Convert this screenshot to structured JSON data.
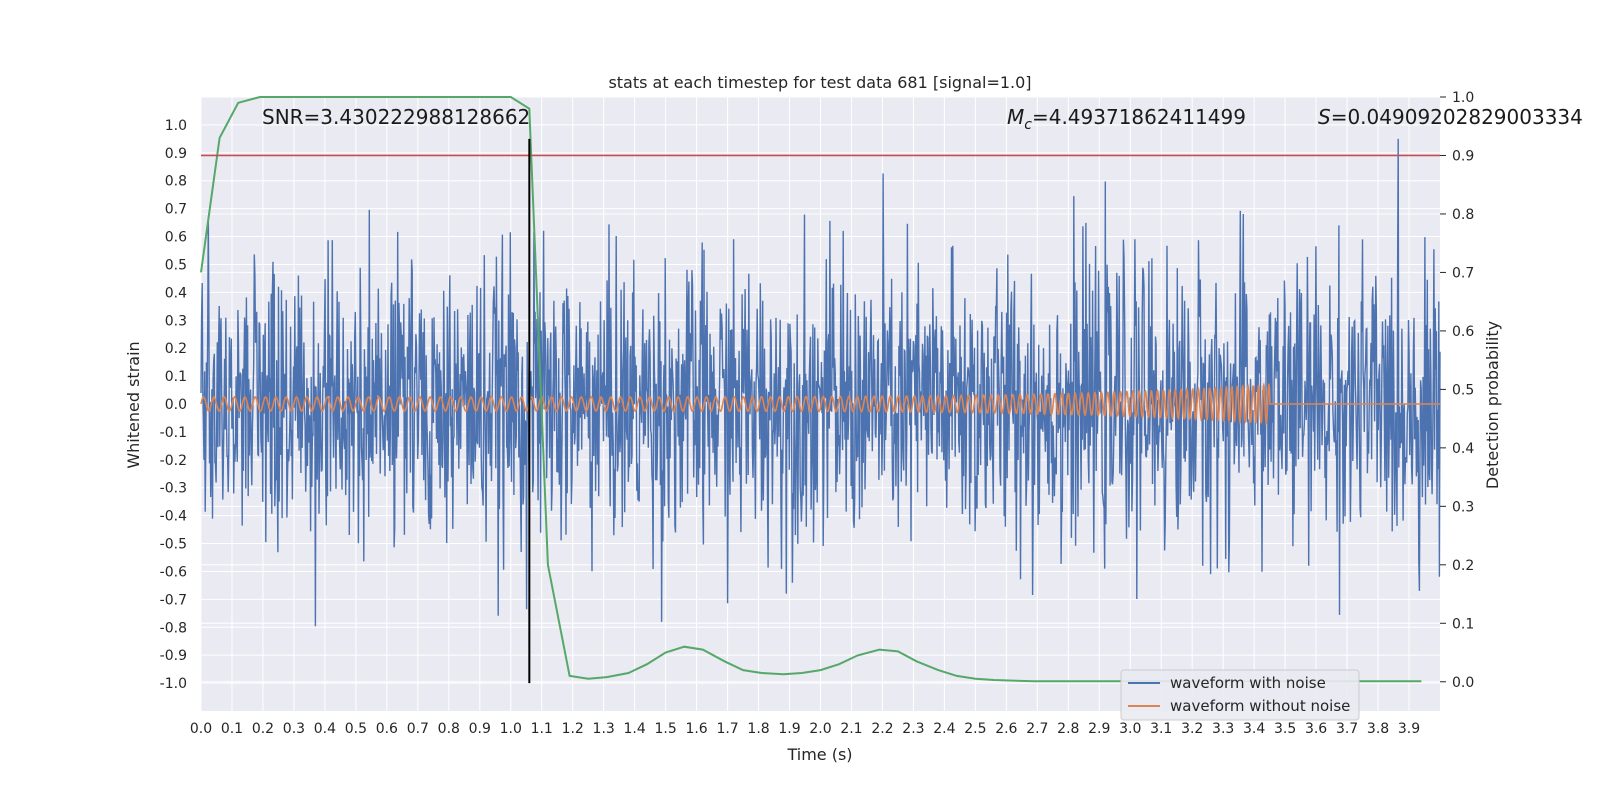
{
  "chart_data": {
    "type": "line",
    "title": "stats at each timestep for test data 681 [signal=1.0]",
    "xlabel": "Time (s)",
    "ylabel": "Whitened strain",
    "y2label": "Detection probability",
    "xlim": [
      0.0,
      4.0
    ],
    "ylim": [
      -1.1,
      1.1
    ],
    "y2lim": [
      -0.05,
      1.0
    ],
    "x_ticks": [
      "0.0",
      "0.1",
      "0.2",
      "0.3",
      "0.4",
      "0.5",
      "0.6",
      "0.7",
      "0.8",
      "0.9",
      "1.0",
      "1.1",
      "1.2",
      "1.3",
      "1.4",
      "1.5",
      "1.6",
      "1.7",
      "1.8",
      "1.9",
      "2.0",
      "2.1",
      "2.2",
      "2.3",
      "2.4",
      "2.5",
      "2.6",
      "2.7",
      "2.8",
      "2.9",
      "3.0",
      "3.1",
      "3.2",
      "3.3",
      "3.4",
      "3.5",
      "3.6",
      "3.7",
      "3.8",
      "3.9"
    ],
    "y_ticks": [
      "1.0",
      "0.9",
      "0.8",
      "0.7",
      "0.6",
      "0.5",
      "0.4",
      "0.3",
      "0.2",
      "0.1",
      "0.0",
      "-0.1",
      "-0.2",
      "-0.3",
      "-0.4",
      "-0.5",
      "-0.6",
      "-0.7",
      "-0.8",
      "-0.9",
      "-1.0"
    ],
    "y2_ticks": [
      "1.0",
      "0.9",
      "0.8",
      "0.7",
      "0.6",
      "0.5",
      "0.4",
      "0.3",
      "0.2",
      "0.1",
      "0.0"
    ],
    "annotations": {
      "snr": "SNR=3.430222988128662",
      "mc_symbol": "M",
      "mc_sub": "c",
      "mc_value": "=4.49371862411499",
      "s_symbol": "S",
      "s_value": "=0.04909202829003334"
    },
    "threshold": 0.9,
    "vline_x": 1.06,
    "series": [
      {
        "name": "waveform with noise",
        "color": "#4c72b0",
        "noise_std": 0.25,
        "n_points": 2048,
        "x_range": [
          0.0,
          4.0
        ]
      },
      {
        "name": "waveform without noise",
        "color": "#dd8452",
        "chirp_start_hz": 30,
        "chirp_end_hz": 60,
        "merger_time": 3.45,
        "start_amplitude": 0.025,
        "peak_amplitude": 0.07
      },
      {
        "name": "detection probability",
        "color": "#55a868",
        "x": [
          0.0,
          0.06,
          0.12,
          0.19,
          0.25,
          0.31,
          0.38,
          0.44,
          0.5,
          0.56,
          0.62,
          0.69,
          0.75,
          0.81,
          0.88,
          0.94,
          1.0,
          1.06,
          1.12,
          1.19,
          1.25,
          1.31,
          1.38,
          1.44,
          1.5,
          1.56,
          1.62,
          1.69,
          1.75,
          1.81,
          1.88,
          1.94,
          2.0,
          2.06,
          2.12,
          2.19,
          2.25,
          2.31,
          2.38,
          2.44,
          2.5,
          2.56,
          2.62,
          2.69,
          2.75,
          2.81,
          2.88,
          2.94,
          3.0,
          3.06,
          3.12,
          3.19,
          3.25,
          3.31,
          3.38,
          3.44,
          3.5,
          3.56,
          3.62,
          3.69,
          3.75,
          3.81,
          3.88,
          3.94
        ],
        "values": [
          0.7,
          0.93,
          0.99,
          1.0,
          1.0,
          1.0,
          1.0,
          1.0,
          1.0,
          1.0,
          1.0,
          1.0,
          1.0,
          1.0,
          1.0,
          1.0,
          1.0,
          0.98,
          0.2,
          0.01,
          0.005,
          0.008,
          0.015,
          0.03,
          0.05,
          0.06,
          0.055,
          0.035,
          0.02,
          0.015,
          0.013,
          0.015,
          0.02,
          0.03,
          0.045,
          0.055,
          0.052,
          0.035,
          0.02,
          0.01,
          0.005,
          0.003,
          0.002,
          0.001,
          0.001,
          0.001,
          0.001,
          0.001,
          0.001,
          0.001,
          0.001,
          0.001,
          0.001,
          0.001,
          0.001,
          0.001,
          0.001,
          0.001,
          0.001,
          0.001,
          0.001,
          0.001,
          0.001,
          0.001
        ]
      }
    ]
  },
  "legend": {
    "items": [
      {
        "label": "waveform with noise",
        "color": "#4c72b0"
      },
      {
        "label": "waveform without noise",
        "color": "#dd8452"
      }
    ]
  },
  "colors": {
    "plot_bg": "#eaeaf2",
    "grid": "#ffffff",
    "threshold_line": "#c44e52",
    "vline": "#000000"
  }
}
